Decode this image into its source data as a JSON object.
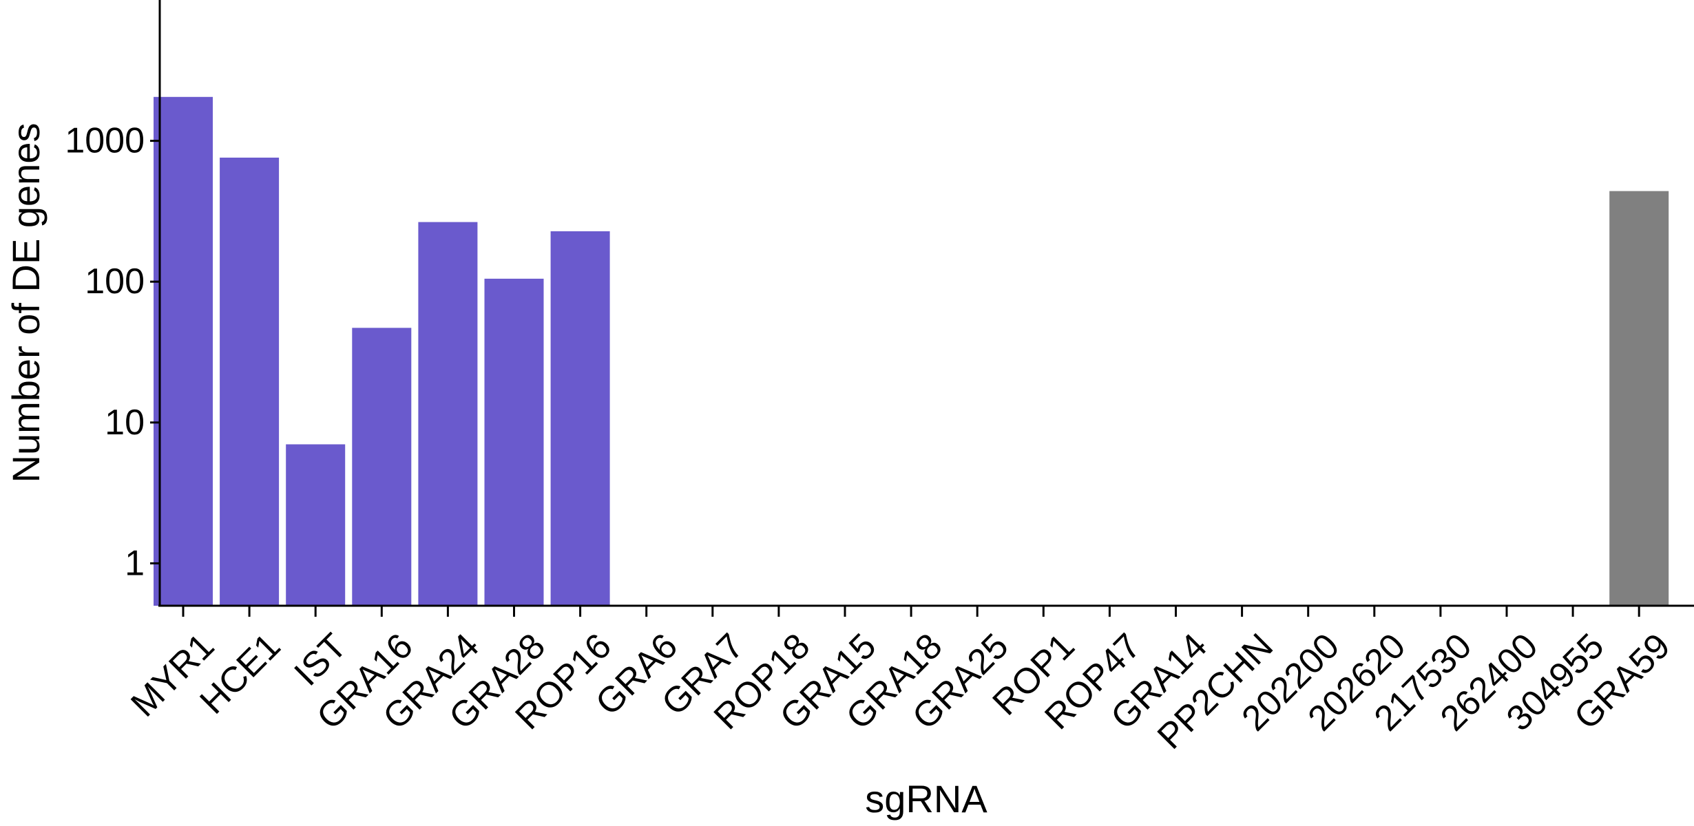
{
  "chart_data": {
    "type": "bar",
    "title": "",
    "xlabel": "sgRNA",
    "ylabel": "Number of DE genes",
    "yscale": "log10",
    "ylim": [
      0.5,
      10000
    ],
    "yticks": [
      1,
      10,
      100,
      1000
    ],
    "ytick_labels": [
      "1",
      "10",
      "100",
      "1000"
    ],
    "grid": false,
    "legend": "none",
    "categories": [
      "MYR1",
      "HCE1",
      "IST",
      "GRA16",
      "GRA24",
      "GRA28",
      "ROP16",
      "GRA6",
      "GRA7",
      "ROP18",
      "GRA15",
      "GRA18",
      "GRA25",
      "ROP1",
      "ROP47",
      "GRA14",
      "PP2CHN",
      "202200",
      "202620",
      "217530",
      "262400",
      "304955",
      "GRA59"
    ],
    "values": [
      2050,
      760,
      7,
      47,
      265,
      105,
      228,
      null,
      null,
      null,
      null,
      null,
      null,
      null,
      null,
      null,
      null,
      null,
      null,
      null,
      null,
      null,
      440
    ],
    "bar_colors": [
      "#6a5acd",
      "#6a5acd",
      "#6a5acd",
      "#6a5acd",
      "#6a5acd",
      "#6a5acd",
      "#6a5acd",
      "#6a5acd",
      "#6a5acd",
      "#6a5acd",
      "#6a5acd",
      "#6a5acd",
      "#6a5acd",
      "#6a5acd",
      "#6a5acd",
      "#6a5acd",
      "#6a5acd",
      "#6a5acd",
      "#6a5acd",
      "#6a5acd",
      "#6a5acd",
      "#6a5acd",
      "#808080"
    ]
  }
}
